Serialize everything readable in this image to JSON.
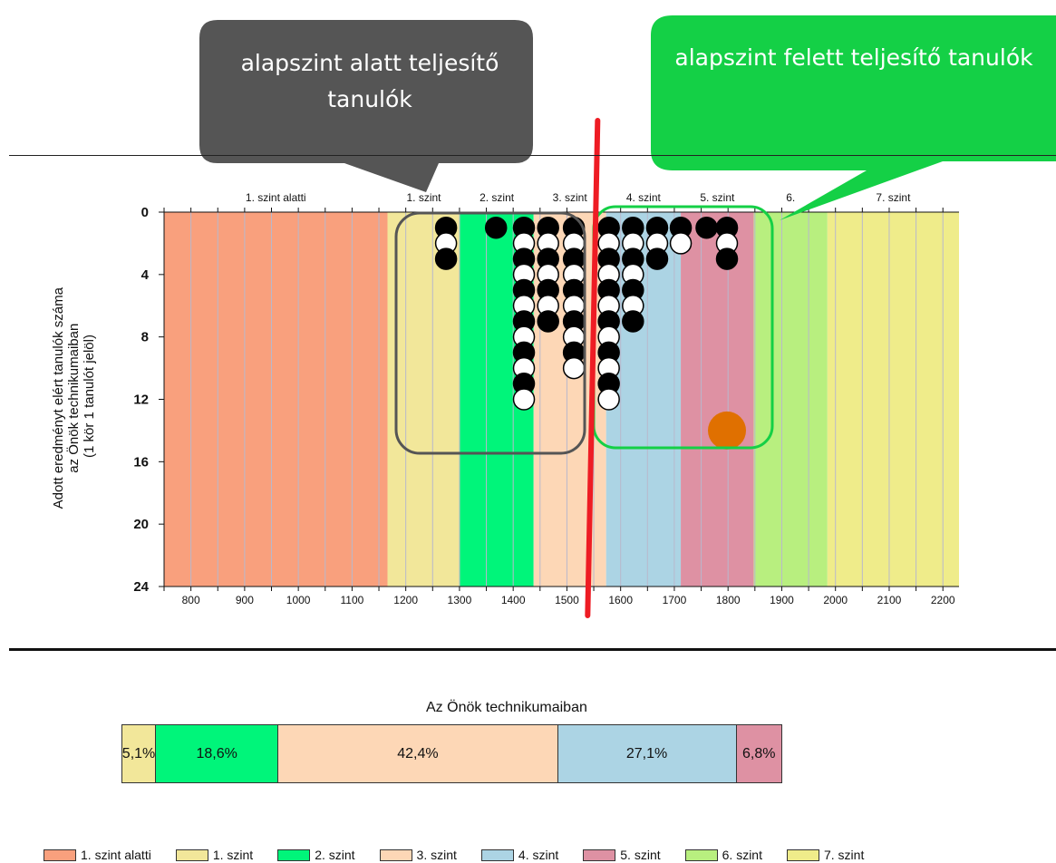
{
  "colors": {
    "band_fills": [
      "#f9a07d",
      "#f2e79a",
      "#00f57a",
      "#fdd7b6",
      "#acd4e4",
      "#de91a3",
      "#b8ef7f",
      "#efec8a"
    ],
    "callout_below": "#555555",
    "callout_above": "#14d046",
    "divider": "#ee1c24",
    "highlight_point": "#e07000"
  },
  "callouts": {
    "below_text": "alapszint alatt teljesítő tanulók",
    "above_text": "alapszint felett teljesítő tanulók"
  },
  "chart_data": [
    {
      "type": "scatter",
      "title": "",
      "ylabel_lines": [
        "Adott eredményt elért tanulók száma",
        "az Önök technikumaiban",
        "(1 kör 1 tanulót jelöl)"
      ],
      "xlim": [
        750,
        2230
      ],
      "ylim": [
        24,
        0
      ],
      "x_ticks": [
        800,
        900,
        1000,
        1100,
        1200,
        1300,
        1400,
        1500,
        1600,
        1700,
        1800,
        1900,
        2000,
        2100,
        2200
      ],
      "y_ticks": [
        0,
        4,
        8,
        12,
        16,
        20,
        24
      ],
      "bands": [
        {
          "name": "1. szint alatti",
          "from": 750,
          "to": 1166
        },
        {
          "name": "1. szint",
          "from": 1166,
          "to": 1301
        },
        {
          "name": "2. szint",
          "from": 1301,
          "to": 1438
        },
        {
          "name": "3. szint",
          "from": 1438,
          "to": 1573
        },
        {
          "name": "4. szint",
          "from": 1573,
          "to": 1712
        },
        {
          "name": "5. szint",
          "from": 1712,
          "to": 1848
        },
        {
          "name": "6. szint",
          "from": 1848,
          "to": 1985
        },
        {
          "name": "7. szint",
          "from": 1985,
          "to": 2230
        }
      ],
      "band_labels": [
        "1. szint alatti",
        "1. szint",
        "2. szint",
        "3. szint",
        "4. szint",
        "5. szint",
        "6.",
        "7. szint"
      ],
      "columns": [
        {
          "x": 1275,
          "count": 3
        },
        {
          "x": 1368,
          "count": 1
        },
        {
          "x": 1420,
          "count": 12
        },
        {
          "x": 1465,
          "count": 7
        },
        {
          "x": 1513,
          "count": 10
        },
        {
          "x": 1578,
          "count": 12
        },
        {
          "x": 1623,
          "count": 7
        },
        {
          "x": 1668,
          "count": 3
        },
        {
          "x": 1712,
          "count": 2
        },
        {
          "x": 1760,
          "count": 1
        },
        {
          "x": 1798,
          "count": 3
        }
      ],
      "highlight_point": {
        "x": 1798,
        "y": 14
      },
      "divider_x": 1542
    },
    {
      "type": "bar",
      "title": "Az Önök technikumaiban",
      "stacked": true,
      "segments": [
        {
          "name": "1. szint",
          "value": 5.1,
          "label": "5,1%"
        },
        {
          "name": "2. szint",
          "value": 18.6,
          "label": "18,6%"
        },
        {
          "name": "3. szint",
          "value": 42.4,
          "label": "42,4%"
        },
        {
          "name": "4. szint",
          "value": 27.1,
          "label": "27,1%"
        },
        {
          "name": "5. szint",
          "value": 6.8,
          "label": "6,8%"
        }
      ]
    }
  ],
  "legend": [
    {
      "label": "1. szint alatti"
    },
    {
      "label": "1. szint"
    },
    {
      "label": "2. szint"
    },
    {
      "label": "3. szint"
    },
    {
      "label": "4. szint"
    },
    {
      "label": "5. szint"
    },
    {
      "label": "6. szint"
    },
    {
      "label": "7. szint"
    }
  ]
}
